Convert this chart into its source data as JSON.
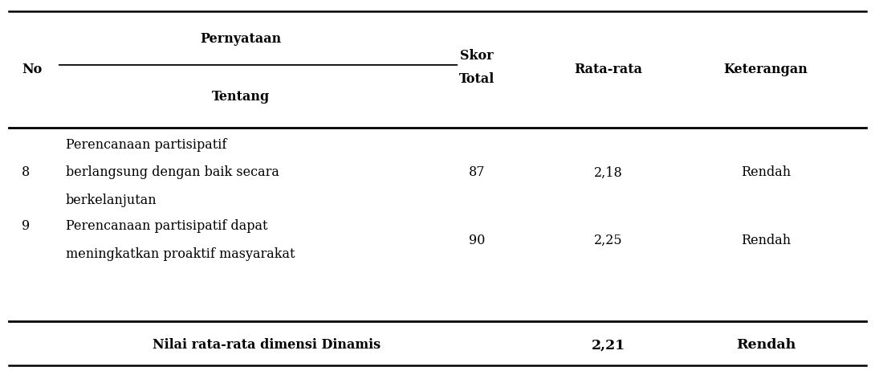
{
  "rows": [
    {
      "no": "8",
      "pernyataan_lines": [
        "Perencanaan partisipatif",
        "berlangsung dengan baik secara",
        "berkelanjutan"
      ],
      "skor_total": "87",
      "rata_rata": "2,18",
      "keterangan": "Rendah"
    },
    {
      "no": "9",
      "pernyataan_lines": [
        "Perencanaan partisipatif dapat",
        "meningkatkan proaktif masyarakat"
      ],
      "skor_total": "90",
      "rata_rata": "2,25",
      "keterangan": "Rendah"
    }
  ],
  "footer": {
    "label": "Nilai rata-rata dimensi Dinamis",
    "rata_rata": "2,21",
    "keterangan": "Rendah"
  },
  "col_x": {
    "no": 0.025,
    "pernyataan": 0.075,
    "skor_total": 0.545,
    "rata_rata": 0.695,
    "keterangan": 0.875
  },
  "font_size": 11.5,
  "text_color": "#000000",
  "background_color": "#ffffff",
  "line_color": "#000000"
}
